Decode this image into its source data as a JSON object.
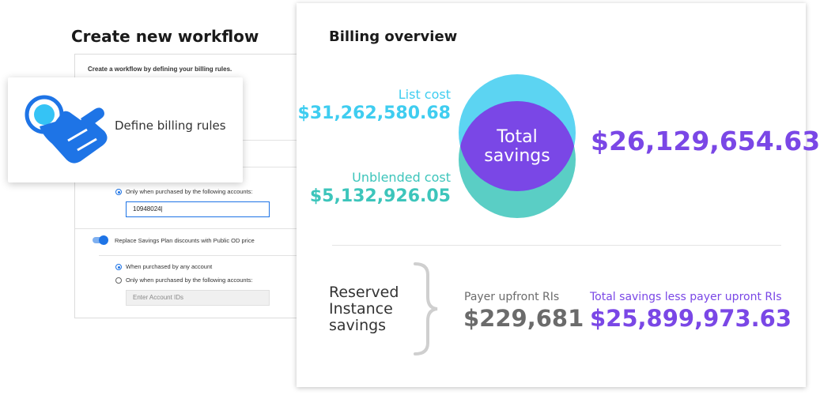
{
  "left": {
    "heading": "Create new workflow",
    "intro": "Create a workflow by defining your billing rules.",
    "card": {
      "label": "Define billing rules",
      "icon": "tap-hand-icon"
    },
    "radio1_label": "Only when purchased by the following accounts:",
    "account_value": "10948024|",
    "toggle_label": "Replace Savings Plan discounts with Public OD price",
    "radio2_label": "When purchased by any account",
    "radio3_label": "Only when purchased by the following accounts:",
    "account_placeholder": "Enter Account IDs"
  },
  "billing": {
    "heading": "Billing overview",
    "list_cost_label": "List cost",
    "list_cost_value": "$31,262,580.68",
    "unblended_label": "Unblended cost",
    "unblended_value": "$5,132,926.05",
    "venn_line1": "Total",
    "venn_line2": "savings",
    "total_savings_value": "$26,129,654.63",
    "ri_line1": "Reserved",
    "ri_line2": "Instance",
    "ri_line3": "savings",
    "payer_label": "Payer upfront RIs",
    "payer_value": "$229,681",
    "less_label": "Total savings less payer upront RIs",
    "less_value": "$25,899,973.63"
  },
  "colors": {
    "list_cyan": "#3fcdf0",
    "unblended_teal": "#3dc5bb",
    "purple": "#7a47e6",
    "gray": "#6b6b6b",
    "blue": "#1e74e6"
  }
}
